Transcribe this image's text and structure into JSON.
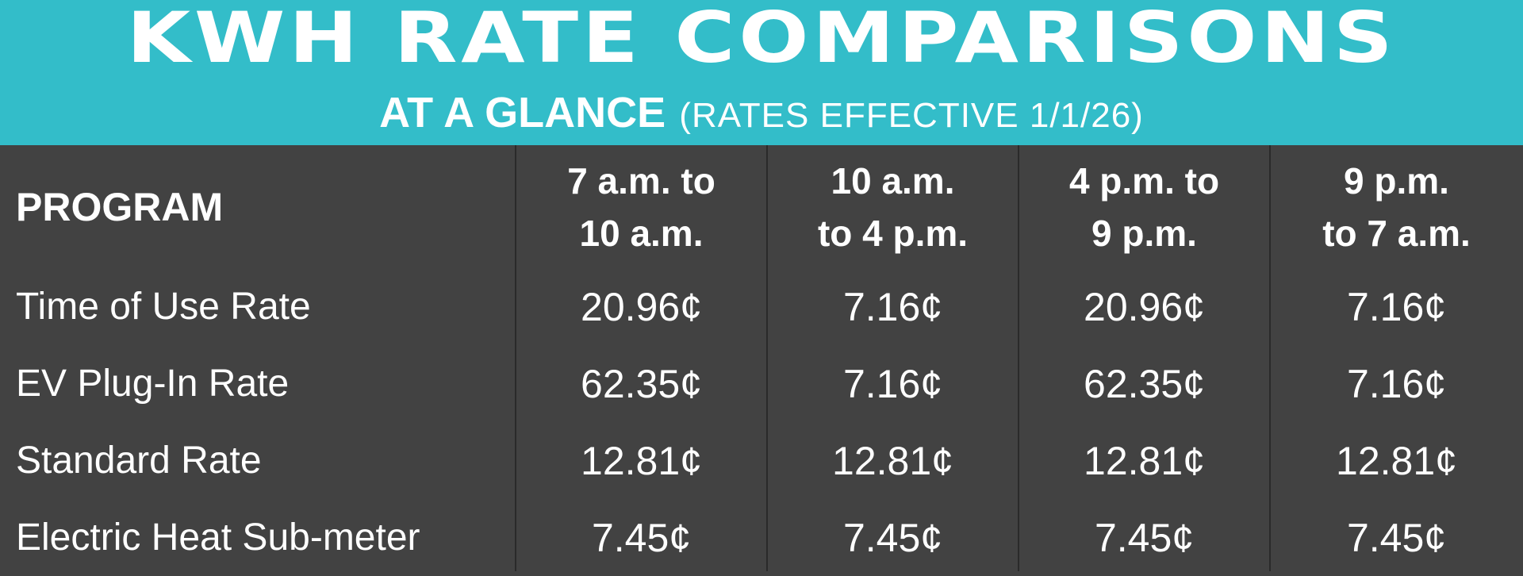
{
  "header": {
    "title": "KWH RATE COMPARISONS",
    "subtitle_strong": "AT A GLANCE",
    "subtitle_note": "(RATES EFFECTIVE 1/1/26)"
  },
  "table": {
    "columns": [
      {
        "label": "PROGRAM"
      },
      {
        "line1": "7 a.m. to",
        "line2": "10 a.m."
      },
      {
        "line1": "10 a.m.",
        "line2": "to 4 p.m."
      },
      {
        "line1": "4 p.m. to",
        "line2": "9 p.m."
      },
      {
        "line1": "9 p.m.",
        "line2": "to 7 a.m."
      }
    ],
    "rows": [
      {
        "program": "Time of Use Rate",
        "values": [
          "20.96¢",
          "7.16¢",
          "20.96¢",
          "7.16¢"
        ]
      },
      {
        "program": "EV Plug-In Rate",
        "values": [
          "62.35¢",
          "7.16¢",
          "62.35¢",
          "7.16¢"
        ]
      },
      {
        "program": "Standard Rate",
        "values": [
          "12.81¢",
          "12.81¢",
          "12.81¢",
          "12.81¢"
        ]
      },
      {
        "program": "Electric Heat Sub-meter",
        "values": [
          "7.45¢",
          "7.45¢",
          "7.45¢",
          "7.45¢"
        ]
      }
    ]
  },
  "colors": {
    "header_bg": "#33bdc9",
    "table_bg": "#424242",
    "divider": "#2a2a2a",
    "text": "#ffffff"
  }
}
